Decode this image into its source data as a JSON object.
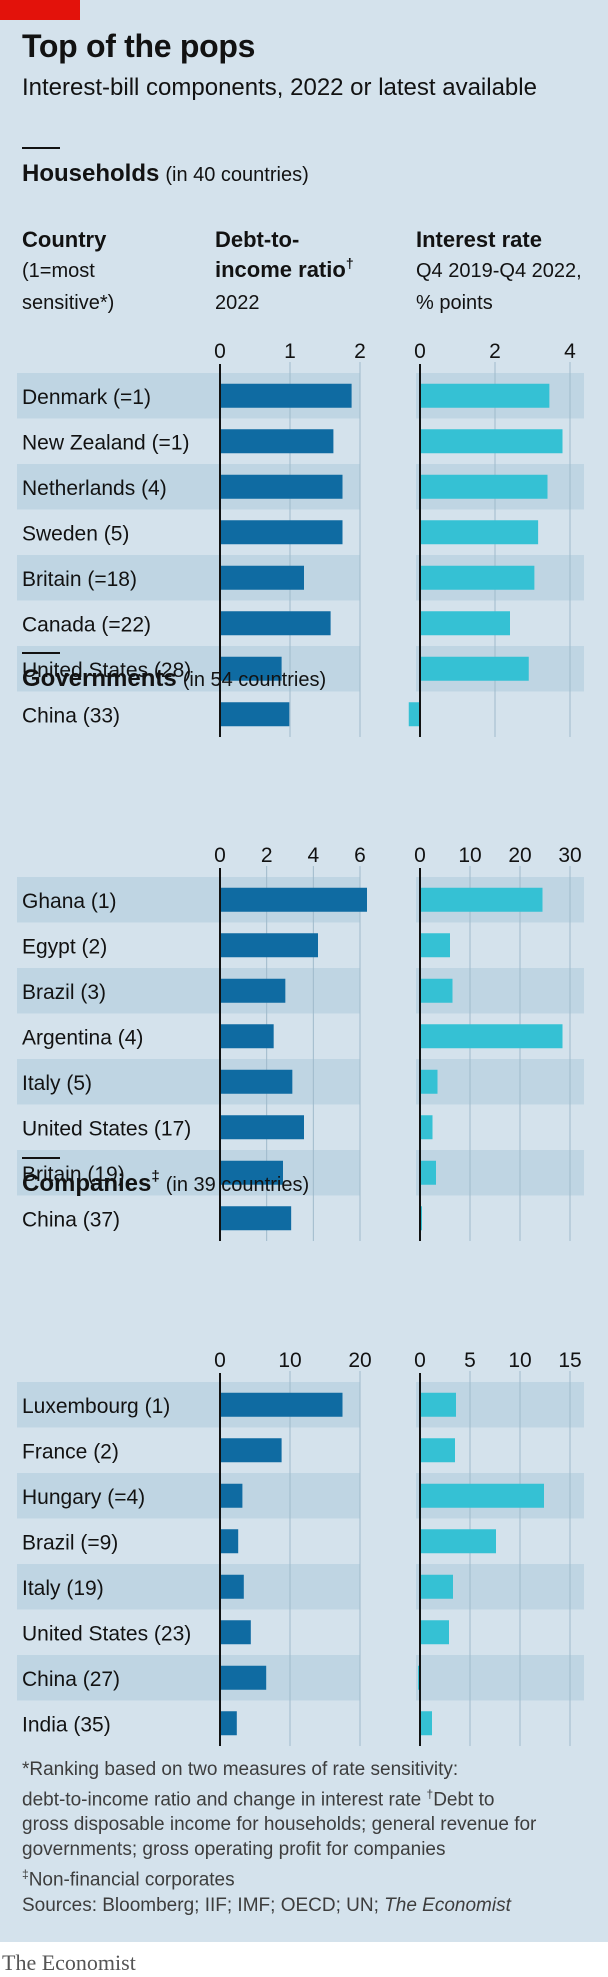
{
  "title": "Top of the pops",
  "subtitle": "Interest-bill components, 2022 or latest available",
  "headers": {
    "country": "Country",
    "country_note_1": "(1=most",
    "country_note_2": "sensitive*)",
    "debt_1": "Debt-to-",
    "debt_2": "income ratio",
    "debt_mark": "†",
    "debt_3": "2022",
    "rate_1": "Interest rate",
    "rate_2": "Q4 2019-Q4 2022,",
    "rate_3": "% points"
  },
  "colors": {
    "background": "#d4e2ec",
    "row_band": "#bfd5e3",
    "debt_bar": "#0f6ba2",
    "rate_bar": "#35c1d4",
    "brand_red": "#e3120b"
  },
  "chart_data": [
    {
      "type": "bar",
      "title": "Households",
      "note": "(in 40 countries)",
      "categories": [
        "Denmark (=1)",
        "New Zealand (=1)",
        "Netherlands (4)",
        "Sweden (5)",
        "Britain (=18)",
        "Canada (=22)",
        "United States (28)",
        "China (33)"
      ],
      "series": [
        {
          "values": [
            1.88,
            1.62,
            1.75,
            1.75,
            1.2,
            1.58,
            0.88,
            0.99
          ]
        },
        {
          "values": [
            3.45,
            3.8,
            3.4,
            3.15,
            3.05,
            2.4,
            2.9,
            -0.3
          ]
        }
      ],
      "ranges": [
        [
          0,
          2
        ],
        [
          0,
          4
        ]
      ],
      "ticks": [
        [
          "0",
          "1",
          "2"
        ],
        [
          "0",
          "2",
          "4"
        ]
      ],
      "tick_values": [
        [
          0,
          1,
          2
        ],
        [
          0,
          2,
          4
        ]
      ]
    },
    {
      "type": "bar",
      "title": "Governments",
      "note": "(in 54 countries)",
      "categories": [
        "Ghana (1)",
        "Egypt (2)",
        "Brazil (3)",
        "Argentina (4)",
        "Italy (5)",
        "United States (17)",
        "Britain (19)",
        "China (37)"
      ],
      "series": [
        {
          "values": [
            6.3,
            4.2,
            2.8,
            2.3,
            3.1,
            3.6,
            2.7,
            3.05
          ]
        },
        {
          "values": [
            24.5,
            6.0,
            6.5,
            28.5,
            3.5,
            2.5,
            3.2,
            0.3
          ]
        }
      ],
      "ranges": [
        [
          0,
          6
        ],
        [
          0,
          30
        ]
      ],
      "ticks": [
        [
          "0",
          "2",
          "4",
          "6"
        ],
        [
          "0",
          "10",
          "20",
          "30"
        ]
      ],
      "tick_values": [
        [
          0,
          2,
          4,
          6
        ],
        [
          0,
          10,
          20,
          30
        ]
      ]
    },
    {
      "type": "bar",
      "title": "Companies",
      "title_mark": "‡",
      "note": "(in 39 countries)",
      "categories": [
        "Luxembourg (1)",
        "France (2)",
        "Hungary (=4)",
        "Brazil (=9)",
        "Italy (19)",
        "United States (23)",
        "China (27)",
        "India (35)"
      ],
      "series": [
        {
          "values": [
            17.5,
            8.8,
            3.2,
            2.6,
            3.4,
            4.4,
            6.6,
            2.4
          ]
        },
        {
          "values": [
            3.6,
            3.5,
            12.4,
            7.6,
            3.3,
            2.9,
            -0.2,
            1.2
          ]
        }
      ],
      "ranges": [
        [
          0,
          20
        ],
        [
          0,
          15
        ]
      ],
      "ticks": [
        [
          "0",
          "10",
          "20"
        ],
        [
          "0",
          "5",
          "10",
          "15"
        ]
      ],
      "tick_values": [
        [
          0,
          10,
          20
        ],
        [
          0,
          5,
          10,
          15
        ]
      ]
    }
  ],
  "footnotes": {
    "line1": "*Ranking based on two measures of rate sensitivity:",
    "line2a": "debt-to-income ratio and change in interest rate",
    "dagger": "†",
    "line2b": "Debt to",
    "line3": "gross disposable income for households; general revenue for",
    "line4": "governments; gross operating profit for companies",
    "ddagger": "‡",
    "line5": "Non-financial corporates",
    "sources_prefix": "Sources: Bloomberg; IIF; IMF; OECD; UN; ",
    "sources_italic": "The Economist"
  },
  "brand": "The Economist"
}
